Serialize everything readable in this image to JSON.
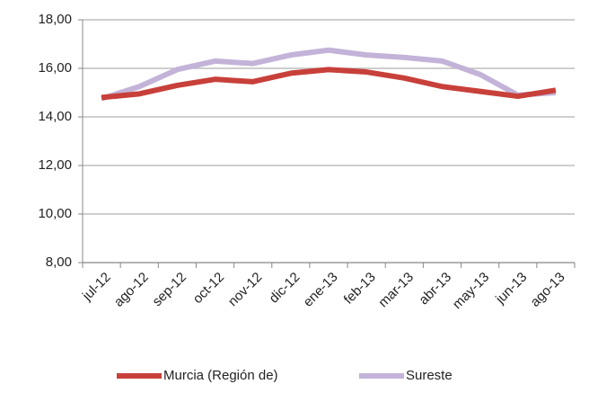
{
  "chart_data": {
    "type": "line",
    "categories": [
      "jul-12",
      "ago-12",
      "sep-12",
      "oct-12",
      "nov-12",
      "dic-12",
      "ene-13",
      "feb-13",
      "mar-13",
      "abr-13",
      "may-13",
      "jun-13",
      "ago-13"
    ],
    "series": [
      {
        "name": "Murcia (Región de)",
        "color": "#c8403a",
        "values": [
          14.8,
          14.95,
          15.3,
          15.55,
          15.45,
          15.8,
          15.95,
          15.85,
          15.6,
          15.25,
          15.05,
          14.85,
          15.1
        ]
      },
      {
        "name": "Sureste",
        "color": "#c3b3d8",
        "values": [
          14.75,
          15.25,
          15.95,
          16.3,
          16.2,
          16.55,
          16.75,
          16.55,
          16.45,
          16.3,
          15.75,
          14.9,
          15.0
        ]
      }
    ],
    "ylim": [
      8,
      18
    ],
    "yticks": [
      {
        "value": 8,
        "label": "8,00"
      },
      {
        "value": 10,
        "label": "10,00"
      },
      {
        "value": 12,
        "label": "12,00"
      },
      {
        "value": 14,
        "label": "14,00"
      },
      {
        "value": 16,
        "label": "16,00"
      },
      {
        "value": 18,
        "label": "18,00"
      }
    ],
    "grid": true,
    "legend": "bottom"
  }
}
